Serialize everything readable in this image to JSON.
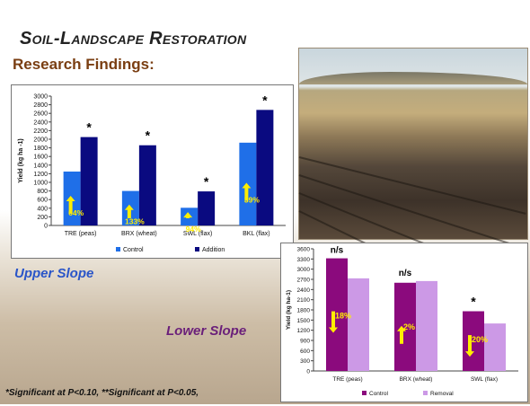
{
  "slide": {
    "title": "Soil-Landscape Restoration",
    "subtitle": "Research Findings:",
    "upper_label": "Upper Slope",
    "lower_label": "Lower Slope",
    "footnote": "*Significant at P<0.10, **Significant at P<0.05,"
  },
  "colors": {
    "control_blue": "#1f6fe8",
    "addition_navy": "#0a0a80",
    "control_purple": "#8b0a7d",
    "removal_lavender": "#cc99e6",
    "arrow_yellow": "#ffee00"
  },
  "chart_data": [
    {
      "type": "bar",
      "categories": [
        "TRE (peas)",
        "BRX (wheat)",
        "SWL (flax)",
        "BKL (flax)"
      ],
      "series": [
        {
          "name": "Control",
          "values": [
            1250,
            800,
            410,
            1920
          ]
        },
        {
          "name": "Addition",
          "values": [
            2050,
            1860,
            790,
            2680
          ]
        }
      ],
      "ylabel": "Yield (kg ha -1)",
      "ylim": [
        0,
        3000
      ],
      "yticks": [
        "0",
        "200",
        "400",
        "600",
        "800",
        "1000",
        "1200",
        "1400",
        "1600",
        "1800",
        "2000",
        "2200",
        "2400",
        "2600",
        "2800",
        "3000"
      ],
      "significance": [
        "*",
        "*",
        "*",
        "*"
      ],
      "change_labels": [
        "64%",
        "133%",
        "94%",
        "39%"
      ],
      "change_direction": [
        "up",
        "up",
        "up",
        "up"
      ],
      "legend": "bottom",
      "grid": false
    },
    {
      "type": "bar",
      "categories": [
        "TRE (peas)",
        "BRX (wheat)",
        "SWL (flax)"
      ],
      "series": [
        {
          "name": "Control",
          "values": [
            3320,
            2600,
            1760
          ]
        },
        {
          "name": "Removal",
          "values": [
            2730,
            2650,
            1400
          ]
        }
      ],
      "ylabel": "Yield (kg ha-1)",
      "ylim": [
        0,
        3600
      ],
      "yticks": [
        "0",
        "300",
        "600",
        "900",
        "1200",
        "1500",
        "1800",
        "2100",
        "2400",
        "2700",
        "3000",
        "3300",
        "3600"
      ],
      "significance": [
        "n/s",
        "n/s",
        "*"
      ],
      "change_labels": [
        "18%",
        "2%",
        "20%"
      ],
      "change_direction": [
        "down",
        "up",
        "down"
      ],
      "legend": "bottom",
      "grid": false
    }
  ]
}
